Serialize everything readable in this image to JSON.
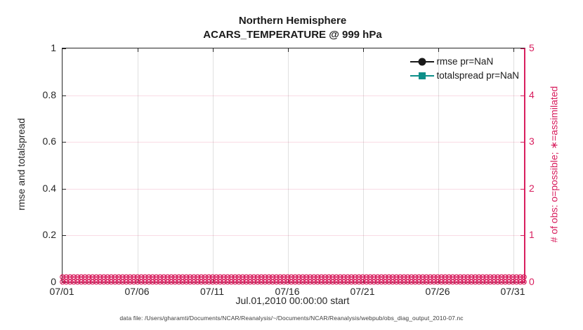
{
  "title": {
    "line1": "Northern Hemisphere",
    "line2": "ACARS_TEMPERATURE @ 999 hPa"
  },
  "axes": {
    "x": {
      "label": "Jul.01,2010 00:00:00 start",
      "tick_labels": [
        "07/01",
        "07/06",
        "07/11",
        "07/16",
        "07/21",
        "07/26",
        "07/31"
      ]
    },
    "left": {
      "label": "rmse and totalspread",
      "tick_labels": [
        "0",
        "0.2",
        "0.4",
        "0.6",
        "0.8",
        "1"
      ],
      "range": [
        0,
        1
      ],
      "color": "#262626"
    },
    "right": {
      "label": "# of obs: o=possible; ∗=assimilated",
      "tick_labels": [
        "0",
        "1",
        "2",
        "3",
        "4",
        "5"
      ],
      "range": [
        0,
        5
      ],
      "color": "#d81e5e"
    }
  },
  "legend": {
    "items": [
      {
        "label": "rmse pr=NaN",
        "marker": "circle",
        "color": "#1a1a1a"
      },
      {
        "label": "totalspread pr=NaN",
        "marker": "square",
        "color": "#0d8f89"
      }
    ]
  },
  "caption": "data file: /Users/gharamti/Documents/NCAR/Reanalysis/~/Documents/NCAR/Reanalysis/webpub/obs_diag_output_2010-07.nc",
  "colors": {
    "obs_axis_pink": "#d81e5e",
    "rmse_black": "#1a1a1a",
    "totalspread_teal": "#0d8f89",
    "grid_gray": "rgba(38,38,38,0.14)",
    "grid_pink": "rgba(216,30,94,0.16)"
  },
  "chart_data": {
    "type": "line",
    "title": "Northern Hemisphere",
    "subtitle": "ACARS_TEMPERATURE @ 999 hPa",
    "xlabel": "Jul.01,2010 00:00:00 start",
    "ylabel_left": "rmse and totalspread",
    "ylabel_right": "# of obs: o=possible; ∗=assimilated",
    "x_tick_labels": [
      "07/01",
      "07/06",
      "07/11",
      "07/16",
      "07/21",
      "07/26",
      "07/31"
    ],
    "ylim_left": [
      0,
      1
    ],
    "ylim_right": [
      0,
      5
    ],
    "grid": true,
    "legend_position": "top-right-inside",
    "series": [
      {
        "name": "rmse pr=NaN",
        "marker": "filled-circle",
        "color": "#1a1a1a",
        "values": "NaN (no line plotted)"
      },
      {
        "name": "totalspread pr=NaN",
        "marker": "filled-square",
        "color": "#0d8f89",
        "values": "NaN (no line plotted)"
      },
      {
        "name": "possible obs (o)",
        "color": "#d81e5e",
        "constant_value": 0,
        "num_points": 124
      },
      {
        "name": "assimilated obs (∗)",
        "color": "#d81e5e",
        "constant_value": 0,
        "num_points": 124
      }
    ],
    "obs_band": {
      "bins": 124,
      "value": 0,
      "rows": 2
    }
  }
}
